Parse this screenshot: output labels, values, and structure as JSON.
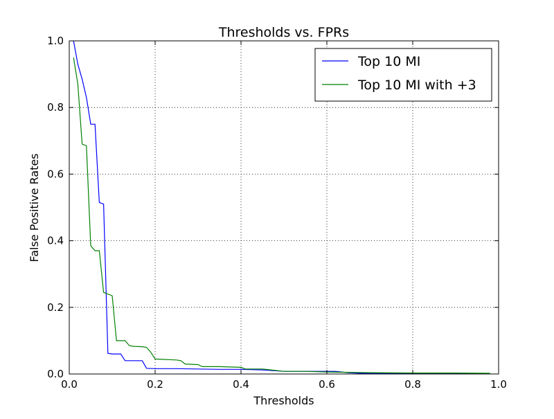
{
  "chart_data": {
    "type": "line",
    "title": "Thresholds vs. FPRs",
    "xlabel": "Thresholds",
    "ylabel": "False Positive Rates",
    "xlim": [
      0.0,
      1.0
    ],
    "ylim": [
      0.0,
      1.0
    ],
    "xticks": [
      "0.0",
      "0.2",
      "0.4",
      "0.6",
      "0.8",
      "1.0"
    ],
    "yticks": [
      "0.0",
      "0.2",
      "0.4",
      "0.6",
      "0.8",
      "1.0"
    ],
    "grid": true,
    "legend_position": "top-right",
    "series": [
      {
        "name": "Top 10 MI",
        "color": "#0000ff",
        "x": [
          0.01,
          0.02,
          0.03,
          0.04,
          0.05,
          0.06,
          0.07,
          0.08,
          0.09,
          0.1,
          0.11,
          0.12,
          0.13,
          0.14,
          0.15,
          0.17,
          0.18,
          0.2,
          0.25,
          0.3,
          0.35,
          0.4,
          0.45,
          0.5,
          0.55,
          0.6,
          0.62,
          0.65,
          0.68,
          0.7,
          0.8,
          0.9,
          0.98
        ],
        "y": [
          1.0,
          0.93,
          0.885,
          0.83,
          0.75,
          0.75,
          0.515,
          0.51,
          0.062,
          0.06,
          0.06,
          0.06,
          0.04,
          0.04,
          0.04,
          0.04,
          0.017,
          0.016,
          0.016,
          0.015,
          0.014,
          0.014,
          0.012,
          0.008,
          0.008,
          0.008,
          0.008,
          0.004,
          0.002,
          0.002,
          0.002,
          0.002,
          0.001
        ]
      },
      {
        "name": "Top 10 MI with +3",
        "color": "#008000",
        "x": [
          0.01,
          0.02,
          0.03,
          0.04,
          0.05,
          0.06,
          0.07,
          0.08,
          0.09,
          0.1,
          0.11,
          0.12,
          0.13,
          0.14,
          0.15,
          0.17,
          0.18,
          0.19,
          0.2,
          0.25,
          0.26,
          0.27,
          0.3,
          0.31,
          0.35,
          0.4,
          0.41,
          0.45,
          0.5,
          0.55,
          0.6,
          0.65,
          0.7,
          0.8,
          0.9,
          0.98
        ],
        "y": [
          0.95,
          0.87,
          0.69,
          0.685,
          0.385,
          0.37,
          0.37,
          0.245,
          0.24,
          0.235,
          0.1,
          0.1,
          0.1,
          0.085,
          0.083,
          0.082,
          0.08,
          0.065,
          0.045,
          0.042,
          0.04,
          0.03,
          0.028,
          0.022,
          0.022,
          0.02,
          0.015,
          0.015,
          0.008,
          0.008,
          0.006,
          0.005,
          0.004,
          0.003,
          0.003,
          0.002
        ]
      }
    ]
  }
}
